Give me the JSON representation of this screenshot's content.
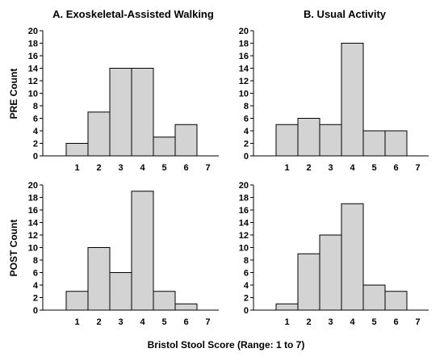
{
  "figure": {
    "xlabel": "Bristol Stool Score (Range: 1 to 7)",
    "row_labels": [
      "PRE Count",
      "POST Count"
    ],
    "column_titles": [
      "A.  Exoskeletal-Assisted Walking",
      "B.  Usual Activity"
    ]
  },
  "chart_data": [
    {
      "type": "bar",
      "panel": "A.  Exoskeletal-Assisted Walking",
      "row": "PRE Count",
      "categories": [
        "1",
        "2",
        "3",
        "4",
        "5",
        "6",
        "7"
      ],
      "values": [
        2,
        7,
        14,
        14,
        3,
        5,
        0
      ],
      "ylim": [
        0,
        20
      ],
      "yticks": [
        0,
        2,
        4,
        6,
        8,
        10,
        12,
        14,
        16,
        18,
        20
      ],
      "grid": false
    },
    {
      "type": "bar",
      "panel": "B.  Usual Activity",
      "row": "PRE Count",
      "categories": [
        "1",
        "2",
        "3",
        "4",
        "5",
        "6",
        "7"
      ],
      "values": [
        5,
        6,
        5,
        18,
        4,
        4,
        0
      ],
      "ylim": [
        0,
        20
      ],
      "yticks": [
        0,
        2,
        4,
        6,
        8,
        10,
        12,
        14,
        16,
        18,
        20
      ],
      "grid": false
    },
    {
      "type": "bar",
      "panel": "A.  Exoskeletal-Assisted Walking",
      "row": "POST Count",
      "categories": [
        "1",
        "2",
        "3",
        "4",
        "5",
        "6",
        "7"
      ],
      "values": [
        3,
        10,
        6,
        19,
        3,
        1,
        0
      ],
      "ylim": [
        0,
        20
      ],
      "yticks": [
        0,
        2,
        4,
        6,
        8,
        10,
        12,
        14,
        16,
        18,
        20
      ],
      "grid": false
    },
    {
      "type": "bar",
      "panel": "B.  Usual Activity",
      "row": "POST Count",
      "categories": [
        "1",
        "2",
        "3",
        "4",
        "5",
        "6",
        "7"
      ],
      "values": [
        1,
        9,
        12,
        17,
        4,
        3,
        0
      ],
      "ylim": [
        0,
        20
      ],
      "yticks": [
        0,
        2,
        4,
        6,
        8,
        10,
        12,
        14,
        16,
        18,
        20
      ],
      "grid": false
    }
  ]
}
